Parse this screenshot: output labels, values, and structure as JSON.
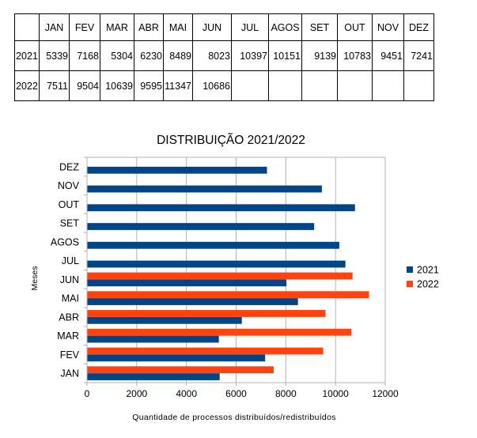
{
  "table": {
    "headers": [
      "",
      "JAN",
      "FEV",
      "MAR",
      "ABR",
      "MAI",
      "JUN",
      "JUL",
      "AGOS",
      "SET",
      "OUT",
      "NOV",
      "DEZ"
    ],
    "rows": [
      [
        "2021",
        "5339",
        "7168",
        "5304",
        "6230",
        "8489",
        "8023",
        "10397",
        "10151",
        "9139",
        "10783",
        "9451",
        "7241"
      ],
      [
        "2022",
        "7511",
        "9504",
        "10639",
        "9595",
        "11347",
        "10686",
        "",
        "",
        "",
        "",
        "",
        ""
      ]
    ]
  },
  "chart_data": {
    "type": "bar",
    "orientation": "horizontal",
    "title": "DISTRIBUIÇÃO 2021/2022",
    "xlabel": "Quantidade de processos distribuídos/redistribuídos",
    "ylabel": "Meses",
    "categories": [
      "JAN",
      "FEV",
      "MAR",
      "ABR",
      "MAI",
      "JUN",
      "JUL",
      "AGOS",
      "SET",
      "OUT",
      "NOV",
      "DEZ"
    ],
    "series": [
      {
        "name": "2021",
        "color": "#004586",
        "values": [
          5339,
          7168,
          5304,
          6230,
          8489,
          8023,
          10397,
          10151,
          9139,
          10783,
          9451,
          7241
        ]
      },
      {
        "name": "2022",
        "color": "#ff420e",
        "values": [
          7511,
          9504,
          10639,
          9595,
          11347,
          10686,
          null,
          null,
          null,
          null,
          null,
          null
        ]
      }
    ],
    "xlim": [
      0,
      12000
    ],
    "xticks": [
      "0",
      "2000",
      "4000",
      "6000",
      "8000",
      "10000",
      "12000"
    ],
    "grid": true,
    "legend_position": "right"
  }
}
